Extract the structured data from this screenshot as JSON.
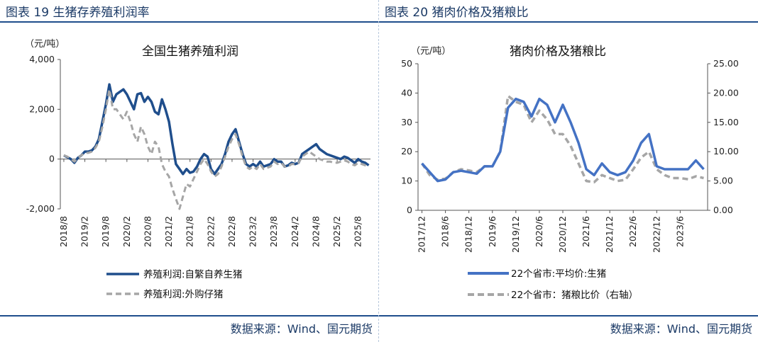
{
  "left_panel": {
    "figure_title": "图表 19 生猪存养殖利润率",
    "source": "数据来源：Wind、国元期货"
  },
  "right_panel": {
    "figure_title": "图表 20 猪肉价格及猪粮比",
    "source": "数据来源：Wind、国元期货"
  },
  "colors": {
    "dark_blue": "#1f4e8c",
    "mid_blue": "#4472c4",
    "gray": "#a6a6a6",
    "rule": "#1f4e8c"
  },
  "chart_data": [
    {
      "type": "line",
      "title": "全国生猪养殖利润",
      "unit_label": "（元/吨）",
      "ylim": [
        -2000,
        4000
      ],
      "y_ticks": [
        "4,000",
        "2,000",
        "0",
        "-2,000"
      ],
      "y_tick_values": [
        4000,
        2000,
        0,
        -2000
      ],
      "x_ticks": [
        "2018/8",
        "2019/2",
        "2019/8",
        "2020/2",
        "2020/8",
        "2021/2",
        "2021/8",
        "2022/2",
        "2022/8",
        "2023/2",
        "2023/8",
        "2024/2",
        "2024/8",
        "2025/2",
        "2025/8"
      ],
      "x": [
        "2018-08",
        "2018-09",
        "2018-10",
        "2018-11",
        "2018-12",
        "2019-01",
        "2019-02",
        "2019-03",
        "2019-04",
        "2019-05",
        "2019-06",
        "2019-07",
        "2019-08",
        "2019-09",
        "2019-10",
        "2019-11",
        "2019-12",
        "2020-01",
        "2020-02",
        "2020-03",
        "2020-04",
        "2020-05",
        "2020-06",
        "2020-07",
        "2020-08",
        "2020-09",
        "2020-10",
        "2020-11",
        "2020-12",
        "2021-01",
        "2021-02",
        "2021-03",
        "2021-04",
        "2021-05",
        "2021-06",
        "2021-07",
        "2021-08",
        "2021-09",
        "2021-10",
        "2021-11",
        "2021-12",
        "2022-01",
        "2022-02",
        "2022-03",
        "2022-04",
        "2022-05",
        "2022-06",
        "2022-07",
        "2022-08",
        "2022-09",
        "2022-10",
        "2022-11",
        "2022-12",
        "2023-01",
        "2023-02",
        "2023-03",
        "2023-04",
        "2023-05",
        "2023-06",
        "2023-07",
        "2023-08",
        "2023-09",
        "2023-10",
        "2023-11",
        "2023-12",
        "2024-01",
        "2024-02",
        "2024-03",
        "2024-04",
        "2024-05",
        "2024-06",
        "2024-07",
        "2024-08",
        "2024-09",
        "2024-10",
        "2024-11",
        "2024-12",
        "2025-01",
        "2025-02",
        "2025-03",
        "2025-04",
        "2025-05",
        "2025-06",
        "2025-07",
        "2025-08",
        "2025-09",
        "2025-10",
        "2025-11"
      ],
      "series": [
        {
          "name": "养殖利润:自繁自养生猪",
          "color": "#1f4e8c",
          "dash": "solid",
          "values": [
            150,
            80,
            0,
            -150,
            50,
            150,
            300,
            300,
            350,
            500,
            800,
            1500,
            2200,
            3000,
            2300,
            2600,
            2700,
            2800,
            2600,
            2300,
            2000,
            2600,
            2650,
            2300,
            2500,
            2300,
            1900,
            1800,
            2400,
            2000,
            1500,
            600,
            -200,
            -400,
            -600,
            -400,
            -550,
            -500,
            -300,
            0,
            200,
            100,
            -400,
            -600,
            -400,
            -200,
            200,
            700,
            1000,
            1200,
            700,
            200,
            -200,
            -300,
            -200,
            -300,
            -100,
            -300,
            -250,
            -200,
            0,
            -100,
            -100,
            -300,
            -250,
            -150,
            -200,
            -150,
            200,
            300,
            400,
            500,
            600,
            400,
            300,
            200,
            150,
            100,
            50,
            0,
            100,
            50,
            -50,
            -150,
            0,
            -100,
            -150,
            -250
          ]
        },
        {
          "name": "养殖利润:外购仔猪",
          "color": "#a6a6a6",
          "dash": "dash",
          "values": [
            150,
            100,
            0,
            -100,
            50,
            150,
            250,
            250,
            300,
            450,
            700,
            1300,
            2000,
            2800,
            2000,
            2000,
            1800,
            1600,
            1900,
            1500,
            1000,
            700,
            1300,
            1000,
            500,
            200,
            700,
            500,
            -200,
            -500,
            -700,
            -1200,
            -1600,
            -2000,
            -1500,
            -1000,
            -1100,
            -800,
            -500,
            -200,
            0,
            -200,
            -500,
            -700,
            -600,
            -300,
            100,
            500,
            800,
            1000,
            600,
            100,
            -300,
            -400,
            -300,
            -400,
            -200,
            -400,
            -350,
            -300,
            -100,
            -200,
            -150,
            -300,
            -300,
            -200,
            -200,
            -150,
            100,
            200,
            300,
            200,
            100,
            0,
            -50,
            -100,
            -100,
            -150,
            -150,
            -100,
            -50,
            -100,
            -200,
            -250,
            -150,
            -200,
            -250,
            -300
          ]
        }
      ]
    },
    {
      "type": "line",
      "title": "猪肉价格及猪粮比",
      "unit_label": "（元/吨）",
      "ylim": [
        0,
        50
      ],
      "y2lim": [
        0,
        25
      ],
      "y_ticks": [
        "50",
        "40",
        "30",
        "20",
        "10",
        "0"
      ],
      "y_tick_values": [
        50,
        40,
        30,
        20,
        10,
        0
      ],
      "y2_ticks": [
        "25.00",
        "20.00",
        "15.00",
        "10.00",
        "5.00",
        "0.00"
      ],
      "y2_tick_values": [
        25,
        20,
        15,
        10,
        5,
        0
      ],
      "x_ticks": [
        "2017/12",
        "2018/6",
        "2018/12",
        "2019/6",
        "2019/12",
        "2020/6",
        "2020/12",
        "2021/6",
        "2021/12",
        "2022/6",
        "2022/12",
        "2023/6"
      ],
      "x": [
        "2017-12",
        "2018-02",
        "2018-04",
        "2018-06",
        "2018-08",
        "2018-10",
        "2018-12",
        "2019-02",
        "2019-04",
        "2019-06",
        "2019-08",
        "2019-10",
        "2019-12",
        "2020-02",
        "2020-04",
        "2020-06",
        "2020-08",
        "2020-10",
        "2020-12",
        "2021-02",
        "2021-04",
        "2021-06",
        "2021-08",
        "2021-10",
        "2021-12",
        "2022-02",
        "2022-04",
        "2022-06",
        "2022-08",
        "2022-10",
        "2022-12",
        "2023-02",
        "2023-04",
        "2023-06",
        "2023-08",
        "2023-10",
        "2023-12"
      ],
      "series": [
        {
          "name": "22个省市:平均价:生猪",
          "axis": "left",
          "color": "#4472c4",
          "dash": "solid",
          "values": [
            16,
            13,
            10,
            10.5,
            13,
            13.5,
            13,
            12.5,
            15,
            15,
            20,
            35,
            38,
            37,
            32,
            38,
            36,
            30,
            36,
            30,
            23,
            14,
            12,
            16,
            13,
            12,
            13,
            17,
            23,
            26,
            15,
            14,
            14,
            14,
            14,
            17,
            14
          ]
        },
        {
          "name": "22个省市：猪粮比价（右轴）",
          "axis": "right",
          "color": "#a6a6a6",
          "dash": "dash",
          "values": [
            8,
            6,
            5.2,
            5.4,
            6.5,
            7,
            6.8,
            6.5,
            7.5,
            7.5,
            10,
            19.5,
            18.5,
            18,
            15,
            17,
            15.5,
            13,
            13,
            11,
            8,
            5,
            4.8,
            6,
            5.5,
            5,
            5.2,
            7,
            9,
            10,
            7,
            6,
            5.5,
            5.5,
            5.3,
            5.8,
            5.5
          ]
        }
      ]
    }
  ]
}
